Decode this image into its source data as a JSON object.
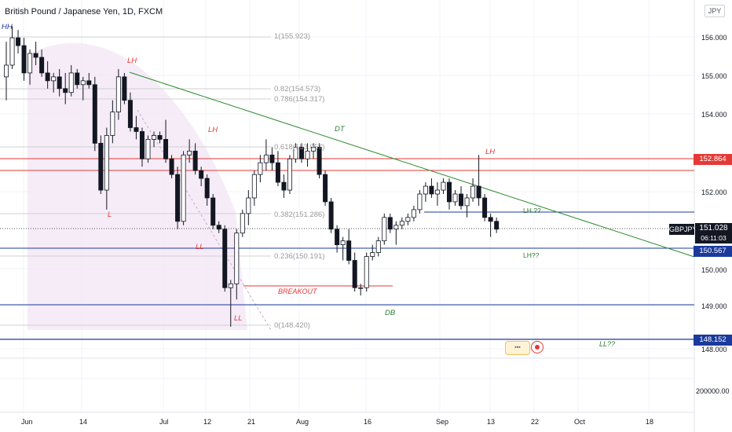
{
  "legend": {
    "title": "British Pound / Japanese Yen, 1D, FXCM"
  },
  "currency_button": "JPY",
  "price_axis": {
    "labels": [
      "156.000",
      "155.000",
      "154.000",
      "152.000",
      "151.000",
      "150.000",
      "149.000",
      "148.000",
      "200000.00"
    ],
    "badges": {
      "resistance": {
        "value": "152.864",
        "color": "#e53935"
      },
      "ticker": "GBPJPY",
      "current_price": "151.028",
      "countdown": "06:11:03",
      "support": {
        "value": "150.567",
        "color": "#1a3a9c"
      },
      "low": {
        "value": "148.152",
        "color": "#1a3a9c"
      }
    }
  },
  "time_axis": {
    "labels": [
      "Jun",
      "14",
      "Jul",
      "12",
      "21",
      "Aug",
      "16",
      "Sep",
      "13",
      "22",
      "Oct",
      "18"
    ]
  },
  "fib_levels": [
    "1(155.923)",
    "0.82(154.573)",
    "0.786(154.317)",
    "0.618(153.057)",
    "0.382(151.286)",
    "0.236(150.191)",
    "0(148.420)"
  ],
  "annotations": {
    "hh": "HH",
    "lh1": "LH",
    "lh2": "LH",
    "l": "L",
    "ll1": "LL",
    "ll2": "LL",
    "dt": "DT",
    "db": "DB",
    "lh3": "LH",
    "breakout": "BREAKOUT",
    "lh_q1": "LH ??",
    "lh_q2": "LH??",
    "ll_q": "LL??"
  },
  "colors": {
    "bull": "#ffffff",
    "bear": "#131722",
    "trendline": "#2e8b2e",
    "resistance": "#e53935",
    "support": "#1a3a9c"
  },
  "chart_data": {
    "type": "candlestick",
    "symbol": "GBPJPY",
    "timeframe": "1D",
    "ylim": [
      148.05,
      156.55
    ],
    "candles": [
      {
        "o": 154.9,
        "h": 155.8,
        "l": 154.3,
        "c": 155.2
      },
      {
        "o": 155.2,
        "h": 156.2,
        "l": 155.1,
        "c": 155.9
      },
      {
        "o": 155.9,
        "h": 156.1,
        "l": 155.5,
        "c": 155.7
      },
      {
        "o": 155.7,
        "h": 155.9,
        "l": 154.8,
        "c": 155.0
      },
      {
        "o": 155.0,
        "h": 155.6,
        "l": 154.7,
        "c": 155.5
      },
      {
        "o": 155.5,
        "h": 155.8,
        "l": 155.2,
        "c": 155.4
      },
      {
        "o": 155.4,
        "h": 155.6,
        "l": 154.9,
        "c": 155.0
      },
      {
        "o": 155.0,
        "h": 155.3,
        "l": 154.6,
        "c": 154.8
      },
      {
        "o": 154.8,
        "h": 155.0,
        "l": 154.5,
        "c": 154.9
      },
      {
        "o": 154.9,
        "h": 155.1,
        "l": 154.4,
        "c": 154.6
      },
      {
        "o": 154.6,
        "h": 155.0,
        "l": 154.2,
        "c": 154.5
      },
      {
        "o": 154.5,
        "h": 155.2,
        "l": 154.4,
        "c": 155.0
      },
      {
        "o": 155.0,
        "h": 155.1,
        "l": 154.6,
        "c": 154.7
      },
      {
        "o": 154.7,
        "h": 154.9,
        "l": 154.3,
        "c": 154.8
      },
      {
        "o": 154.8,
        "h": 155.0,
        "l": 154.6,
        "c": 154.7
      },
      {
        "o": 154.7,
        "h": 154.9,
        "l": 153.0,
        "c": 153.2
      },
      {
        "o": 153.2,
        "h": 153.4,
        "l": 151.9,
        "c": 152.0
      },
      {
        "o": 152.0,
        "h": 153.6,
        "l": 151.5,
        "c": 153.4
      },
      {
        "o": 153.4,
        "h": 154.3,
        "l": 153.2,
        "c": 154.0
      },
      {
        "o": 154.0,
        "h": 155.1,
        "l": 153.8,
        "c": 154.9
      },
      {
        "o": 154.9,
        "h": 155.0,
        "l": 154.2,
        "c": 154.3
      },
      {
        "o": 154.3,
        "h": 154.5,
        "l": 153.5,
        "c": 153.6
      },
      {
        "o": 153.6,
        "h": 153.9,
        "l": 153.3,
        "c": 153.5
      },
      {
        "o": 153.5,
        "h": 153.6,
        "l": 152.6,
        "c": 152.8
      },
      {
        "o": 152.8,
        "h": 153.4,
        "l": 152.7,
        "c": 153.3
      },
      {
        "o": 153.3,
        "h": 153.5,
        "l": 153.1,
        "c": 153.4
      },
      {
        "o": 153.4,
        "h": 153.5,
        "l": 153.2,
        "c": 153.3
      },
      {
        "o": 153.3,
        "h": 153.8,
        "l": 152.7,
        "c": 152.8
      },
      {
        "o": 152.8,
        "h": 152.9,
        "l": 152.3,
        "c": 152.4
      },
      {
        "o": 152.4,
        "h": 152.6,
        "l": 151.0,
        "c": 151.2
      },
      {
        "o": 151.2,
        "h": 153.0,
        "l": 151.1,
        "c": 152.9
      },
      {
        "o": 152.9,
        "h": 153.3,
        "l": 152.7,
        "c": 153.0
      },
      {
        "o": 153.0,
        "h": 153.2,
        "l": 152.4,
        "c": 152.5
      },
      {
        "o": 152.5,
        "h": 152.6,
        "l": 152.1,
        "c": 152.3
      },
      {
        "o": 152.3,
        "h": 152.4,
        "l": 151.6,
        "c": 151.8
      },
      {
        "o": 151.8,
        "h": 151.9,
        "l": 151.0,
        "c": 151.1
      },
      {
        "o": 151.1,
        "h": 151.2,
        "l": 150.9,
        "c": 151.0
      },
      {
        "o": 151.0,
        "h": 151.1,
        "l": 149.4,
        "c": 149.5
      },
      {
        "o": 149.5,
        "h": 149.7,
        "l": 148.5,
        "c": 149.6
      },
      {
        "o": 149.6,
        "h": 151.0,
        "l": 149.2,
        "c": 150.9
      },
      {
        "o": 150.9,
        "h": 151.5,
        "l": 150.8,
        "c": 151.4
      },
      {
        "o": 151.4,
        "h": 152.0,
        "l": 151.1,
        "c": 151.8
      },
      {
        "o": 151.8,
        "h": 152.5,
        "l": 151.6,
        "c": 152.4
      },
      {
        "o": 152.4,
        "h": 152.9,
        "l": 152.2,
        "c": 152.7
      },
      {
        "o": 152.7,
        "h": 153.3,
        "l": 152.5,
        "c": 152.9
      },
      {
        "o": 152.9,
        "h": 153.1,
        "l": 152.5,
        "c": 152.7
      },
      {
        "o": 152.7,
        "h": 153.0,
        "l": 152.1,
        "c": 152.2
      },
      {
        "o": 152.2,
        "h": 152.4,
        "l": 151.8,
        "c": 152.0
      },
      {
        "o": 152.0,
        "h": 152.9,
        "l": 151.9,
        "c": 152.8
      },
      {
        "o": 152.8,
        "h": 153.2,
        "l": 152.7,
        "c": 153.1
      },
      {
        "o": 153.1,
        "h": 153.2,
        "l": 152.7,
        "c": 152.8
      },
      {
        "o": 152.8,
        "h": 153.2,
        "l": 152.6,
        "c": 153.0
      },
      {
        "o": 153.0,
        "h": 153.2,
        "l": 152.8,
        "c": 153.1
      },
      {
        "o": 153.1,
        "h": 153.2,
        "l": 152.3,
        "c": 152.4
      },
      {
        "o": 152.4,
        "h": 152.5,
        "l": 151.6,
        "c": 151.7
      },
      {
        "o": 151.7,
        "h": 151.8,
        "l": 150.9,
        "c": 151.0
      },
      {
        "o": 151.0,
        "h": 151.1,
        "l": 150.4,
        "c": 150.6
      },
      {
        "o": 150.6,
        "h": 150.8,
        "l": 150.2,
        "c": 150.7
      },
      {
        "o": 150.7,
        "h": 151.0,
        "l": 150.1,
        "c": 150.2
      },
      {
        "o": 150.2,
        "h": 150.4,
        "l": 149.4,
        "c": 149.5
      },
      {
        "o": 149.5,
        "h": 149.6,
        "l": 149.3,
        "c": 149.5
      },
      {
        "o": 149.5,
        "h": 150.4,
        "l": 149.4,
        "c": 150.3
      },
      {
        "o": 150.3,
        "h": 150.6,
        "l": 150.2,
        "c": 150.4
      },
      {
        "o": 150.4,
        "h": 150.8,
        "l": 150.3,
        "c": 150.7
      },
      {
        "o": 150.7,
        "h": 151.4,
        "l": 150.6,
        "c": 151.3
      },
      {
        "o": 151.3,
        "h": 151.4,
        "l": 150.9,
        "c": 151.0
      },
      {
        "o": 151.0,
        "h": 151.2,
        "l": 150.6,
        "c": 151.1
      },
      {
        "o": 151.1,
        "h": 151.3,
        "l": 151.0,
        "c": 151.2
      },
      {
        "o": 151.2,
        "h": 151.4,
        "l": 151.1,
        "c": 151.3
      },
      {
        "o": 151.3,
        "h": 151.6,
        "l": 151.2,
        "c": 151.5
      },
      {
        "o": 151.5,
        "h": 152.0,
        "l": 151.4,
        "c": 151.9
      },
      {
        "o": 151.9,
        "h": 152.2,
        "l": 151.7,
        "c": 152.1
      },
      {
        "o": 152.1,
        "h": 152.3,
        "l": 151.8,
        "c": 151.9
      },
      {
        "o": 151.9,
        "h": 152.2,
        "l": 151.6,
        "c": 152.0
      },
      {
        "o": 152.0,
        "h": 152.3,
        "l": 151.9,
        "c": 152.2
      },
      {
        "o": 152.2,
        "h": 152.3,
        "l": 151.5,
        "c": 151.7
      },
      {
        "o": 151.7,
        "h": 152.0,
        "l": 151.6,
        "c": 151.9
      },
      {
        "o": 151.9,
        "h": 152.1,
        "l": 151.5,
        "c": 151.6
      },
      {
        "o": 151.6,
        "h": 151.9,
        "l": 151.3,
        "c": 151.8
      },
      {
        "o": 151.8,
        "h": 152.3,
        "l": 151.7,
        "c": 152.1
      },
      {
        "o": 152.1,
        "h": 152.9,
        "l": 151.6,
        "c": 151.8
      },
      {
        "o": 151.8,
        "h": 151.9,
        "l": 151.2,
        "c": 151.3
      },
      {
        "o": 151.3,
        "h": 151.4,
        "l": 150.8,
        "c": 151.2
      },
      {
        "o": 151.2,
        "h": 151.3,
        "l": 150.9,
        "c": 151.0
      }
    ]
  }
}
